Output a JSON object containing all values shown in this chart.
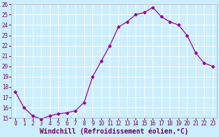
{
  "x": [
    0,
    1,
    2,
    3,
    4,
    5,
    6,
    7,
    8,
    9,
    10,
    11,
    12,
    13,
    14,
    15,
    16,
    17,
    18,
    19,
    20,
    21,
    22,
    23
  ],
  "y": [
    17.5,
    16.0,
    15.2,
    14.9,
    15.2,
    15.4,
    15.5,
    15.7,
    16.5,
    19.0,
    20.5,
    22.0,
    23.8,
    24.3,
    25.0,
    25.2,
    25.7,
    24.8,
    24.3,
    24.0,
    23.0,
    21.3,
    20.3,
    20.0
  ],
  "ylim": [
    15,
    26
  ],
  "yticks": [
    15,
    16,
    17,
    18,
    19,
    20,
    21,
    22,
    23,
    24,
    25,
    26
  ],
  "xticks": [
    0,
    1,
    2,
    3,
    4,
    5,
    6,
    7,
    8,
    9,
    10,
    11,
    12,
    13,
    14,
    15,
    16,
    17,
    18,
    19,
    20,
    21,
    22,
    23
  ],
  "xlabel": "Windchill (Refroidissement éolien,°C)",
  "line_color": "#990099",
  "marker": "D",
  "marker_size": 2.0,
  "line_width": 0.9,
  "bg_color": "#cceeff",
  "grid_color": "#ffffff",
  "tick_label_fontsize": 5.5,
  "xlabel_fontsize": 7.0,
  "xlim": [
    -0.5,
    23.5
  ]
}
